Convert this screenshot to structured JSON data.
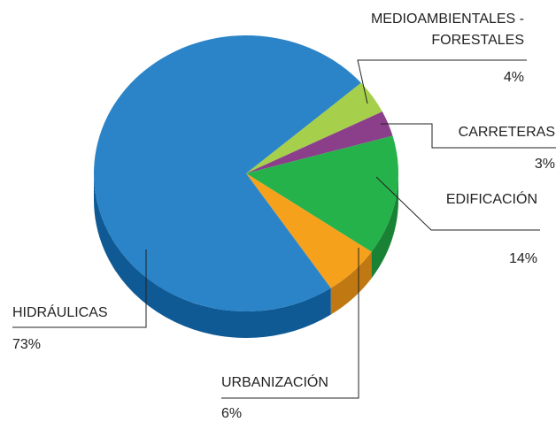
{
  "chart_data": {
    "type": "pie",
    "categories": [
      "MEDIOAMBIENTALES -FORESTALES",
      "CARRETERAS",
      "EDIFICACIÓN",
      "URBANIZACIÓN",
      "HIDRÁULICAS"
    ],
    "values": [
      4,
      3,
      14,
      6,
      73
    ],
    "value_labels": [
      "4%",
      "3%",
      "14%",
      "6%",
      "73%"
    ],
    "colors": [
      "#a6cf4b",
      "#8b3f8a",
      "#26b24b",
      "#f5a11c",
      "#2b84c8"
    ],
    "side_colors": [
      "#7a9e30",
      "#5e2a5d",
      "#1a8235",
      "#c07812",
      "#0f5a95"
    ]
  }
}
